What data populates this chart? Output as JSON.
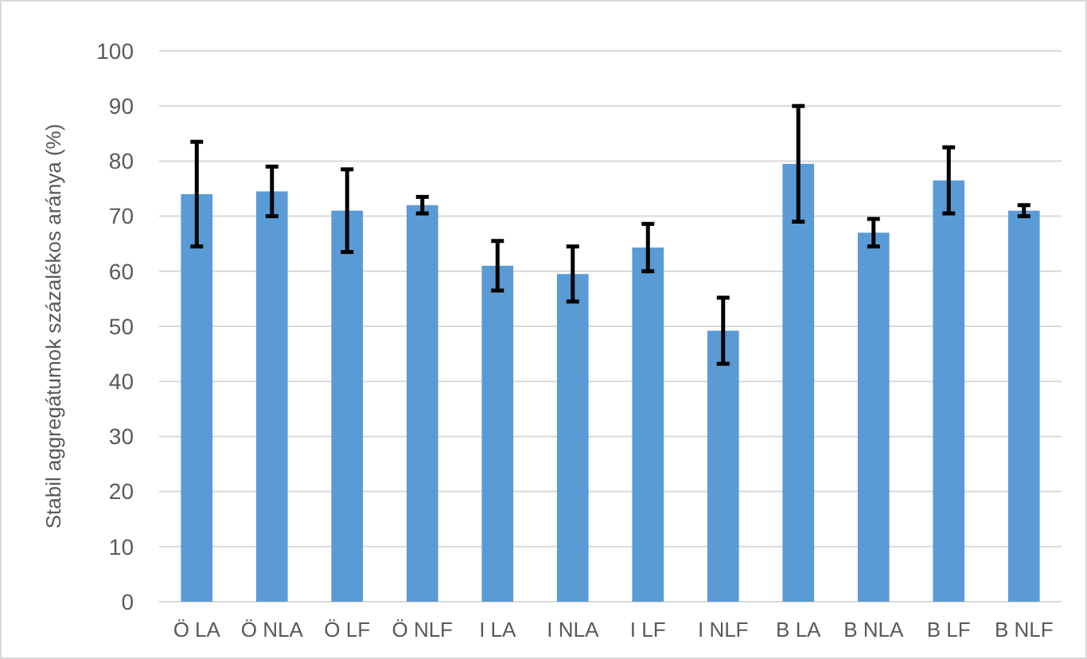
{
  "chart_data": {
    "type": "bar",
    "ylabel": "Stabil aggregátumok százalékos aránya (%)",
    "categories": [
      "Ö LA",
      "Ö NLA",
      "Ö LF",
      "Ö NLF",
      "I LA",
      "I NLA",
      "I LF",
      "I NLF",
      "B LA",
      "B NLA",
      "B LF",
      "B NLF"
    ],
    "values": [
      74,
      74.5,
      71,
      72,
      61,
      59.5,
      64.3,
      49.2,
      79.5,
      67,
      76.5,
      71
    ],
    "errors": [
      9.5,
      4.5,
      7.5,
      1.5,
      4.5,
      5,
      4.3,
      6,
      10.5,
      2.5,
      6,
      1
    ],
    "color": "#5b9bd5",
    "ylim": [
      0,
      100
    ],
    "yticks": [
      0,
      10,
      20,
      30,
      40,
      50,
      60,
      70,
      80,
      90,
      100
    ],
    "grid": "y"
  }
}
